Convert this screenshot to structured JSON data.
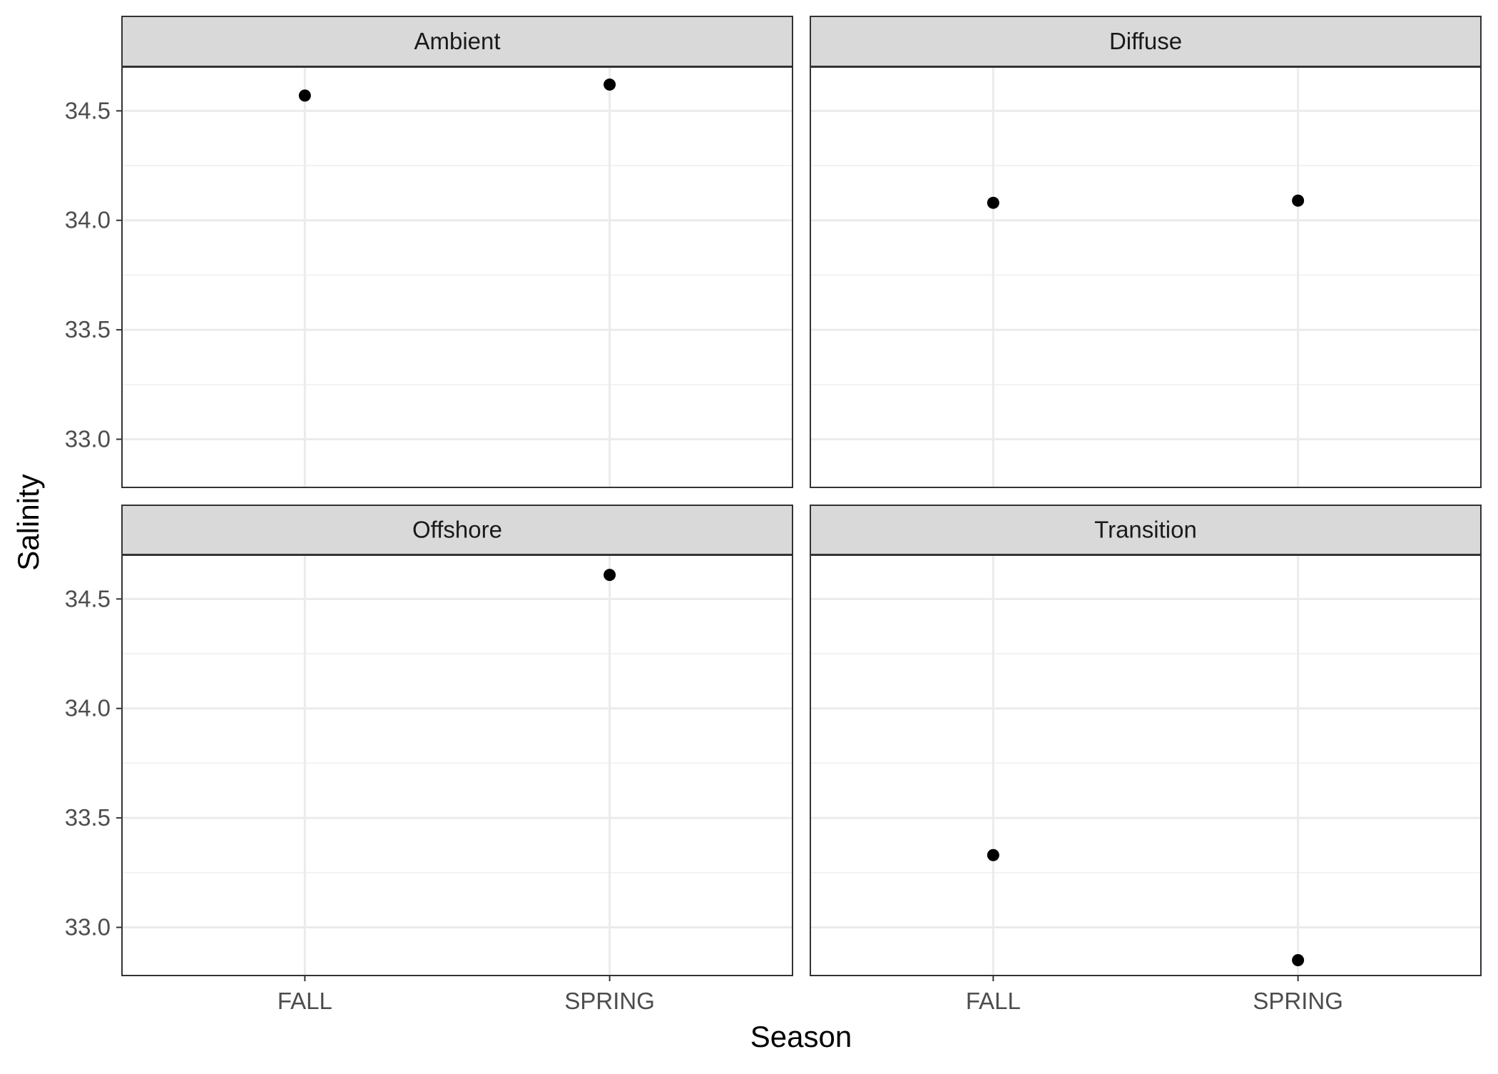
{
  "chart_data": {
    "type": "scatter",
    "layout": "facet_wrap",
    "xlabel": "Season",
    "ylabel": "Salinity",
    "categories": [
      "FALL",
      "SPRING"
    ],
    "ylim": [
      32.78,
      34.7
    ],
    "yticks": [
      "33.0",
      "33.5",
      "34.0",
      "34.5"
    ],
    "grid": true,
    "legend": "none",
    "colors": {
      "point": "#000000",
      "panel_border": "#333333",
      "strip_fill": "#d9d9d9",
      "grid_major": "#ebebeb",
      "grid_minor": "#f2f2f2"
    },
    "facets": [
      {
        "name": "Ambient",
        "points": [
          {
            "x": "FALL",
            "y": 34.57
          },
          {
            "x": "SPRING",
            "y": 34.62
          }
        ]
      },
      {
        "name": "Diffuse",
        "points": [
          {
            "x": "FALL",
            "y": 34.08
          },
          {
            "x": "SPRING",
            "y": 34.09
          }
        ]
      },
      {
        "name": "Offshore",
        "points": [
          {
            "x": "SPRING",
            "y": 34.61
          }
        ]
      },
      {
        "name": "Transition",
        "points": [
          {
            "x": "FALL",
            "y": 33.33
          },
          {
            "x": "SPRING",
            "y": 32.85
          }
        ]
      }
    ]
  }
}
